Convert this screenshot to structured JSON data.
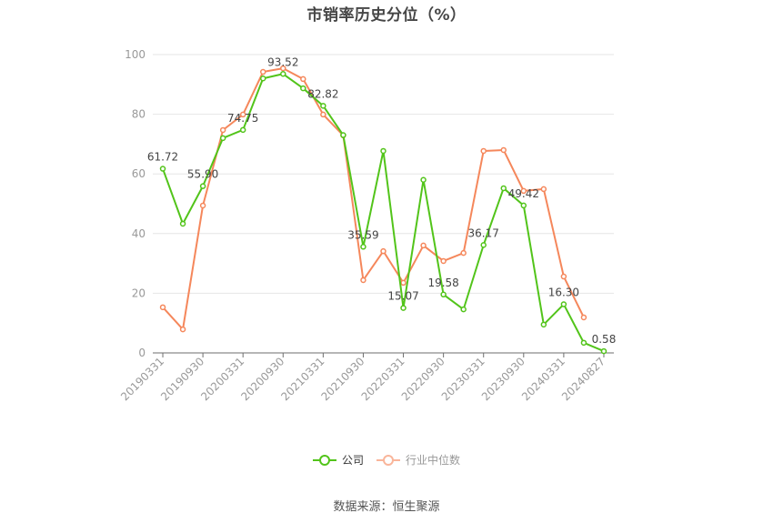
{
  "title": "市销率历史分位（%）",
  "legend": {
    "company": "公司",
    "industry": "行业中位数"
  },
  "source": "数据来源：恒生聚源",
  "colors": {
    "company": "#52c41a",
    "industry": "#f5875b",
    "grid": "#e6e6e6",
    "axis": "#6e6e6e"
  },
  "chart_data": {
    "type": "line",
    "title": "市销率历史分位（%）",
    "xlabel": "",
    "ylabel": "",
    "ylim": [
      0,
      100
    ],
    "yticks": [
      0,
      20,
      40,
      60,
      80,
      100
    ],
    "grid": true,
    "legend_position": "bottom",
    "x": [
      "20190331",
      "20190630",
      "20190930",
      "20191231",
      "20200331",
      "20200630",
      "20200930",
      "20201231",
      "20210331",
      "20210630",
      "20210930",
      "20211231",
      "20220331",
      "20220630",
      "20220930",
      "20221231",
      "20230331",
      "20230630",
      "20230930",
      "20231231",
      "20240331",
      "20240630",
      "20240827"
    ],
    "xtick_labels": [
      "20190331",
      "20190930",
      "20200331",
      "20200930",
      "20210331",
      "20210930",
      "20220331",
      "20220930",
      "20230331",
      "20230930",
      "20240331",
      "20240827"
    ],
    "series": [
      {
        "name": "公司",
        "values": [
          61.72,
          43.3,
          55.9,
          72.0,
          74.75,
          92.0,
          93.52,
          88.7,
          82.82,
          73.0,
          35.59,
          67.7,
          15.07,
          58.0,
          19.58,
          14.6,
          36.17,
          55.2,
          49.42,
          9.5,
          16.3,
          3.4,
          0.58
        ],
        "labels": {
          "0": "61.72",
          "2": "55.90",
          "4": "74.75",
          "6": "93.52",
          "8": "82.82",
          "10": "35.59",
          "12": "15.07",
          "14": "19.58",
          "16": "36.17",
          "18": "49.42",
          "20": "16.30",
          "22": "0.58"
        }
      },
      {
        "name": "行业中位数",
        "values": [
          15.3,
          7.9,
          49.4,
          74.7,
          79.9,
          94.2,
          95.4,
          91.8,
          79.9,
          72.9,
          24.4,
          34.1,
          23.5,
          36.0,
          30.8,
          33.5,
          67.7,
          68.0,
          54.3,
          54.9,
          25.6,
          11.9,
          null
        ]
      }
    ]
  }
}
